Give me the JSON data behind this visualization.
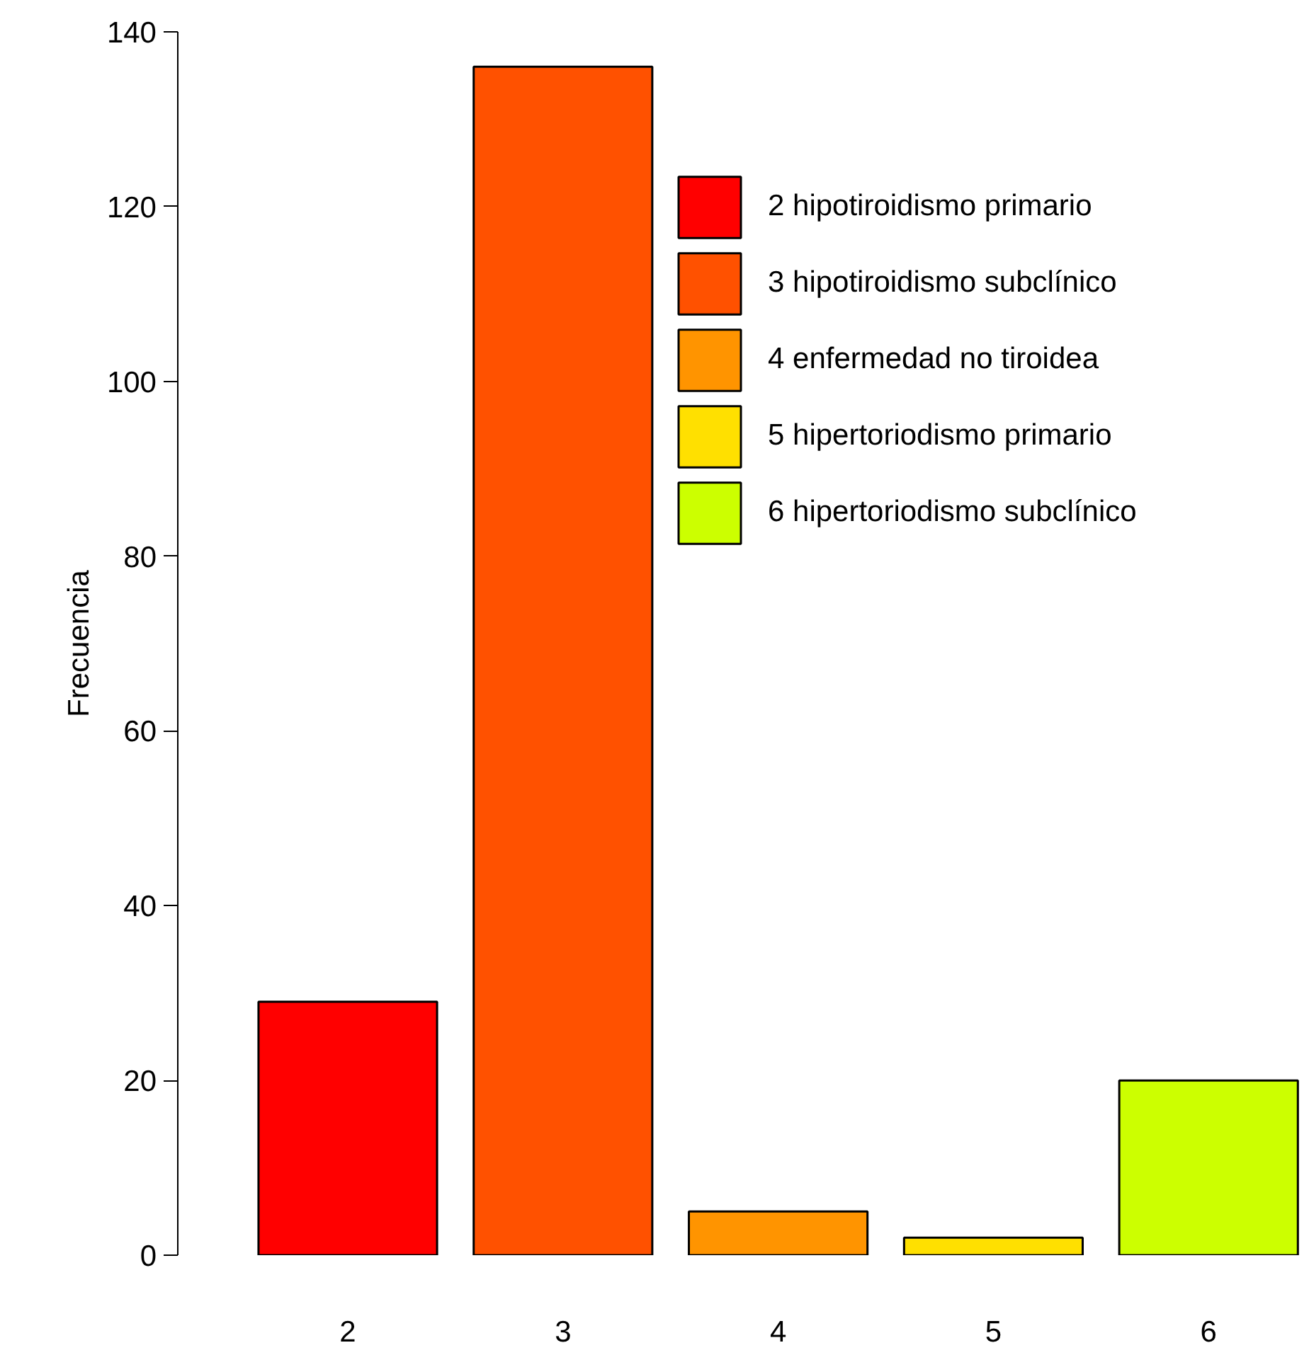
{
  "chart_data": {
    "type": "bar",
    "stacked": true,
    "ylabel": "Frecuencia",
    "categories": [
      "2",
      "3",
      "4",
      "5",
      "6"
    ],
    "series": [
      {
        "name": "2 hipotiroidismo primario",
        "color": "#ff0000",
        "values": [
          29,
          null,
          null,
          null,
          null
        ]
      },
      {
        "name": "3 hipotiroidismo subclínico",
        "color": "#ff5100",
        "values": [
          null,
          136,
          null,
          null,
          null
        ]
      },
      {
        "name": "4 enfermedad no tiroidea",
        "color": "#ff9400",
        "values": [
          null,
          null,
          5,
          null,
          null
        ]
      },
      {
        "name": "5 hipertoriodismo primario",
        "color": "#ffe000",
        "values": [
          null,
          null,
          null,
          2,
          null
        ]
      },
      {
        "name": "6 hipertoriodismo subclínico",
        "color": "#ccff00",
        "values": [
          null,
          null,
          null,
          null,
          20
        ]
      }
    ],
    "ylim": [
      0,
      140
    ],
    "yticks": [
      0,
      20,
      40,
      60,
      80,
      100,
      120,
      140
    ],
    "grid": false,
    "legend": "top right"
  }
}
